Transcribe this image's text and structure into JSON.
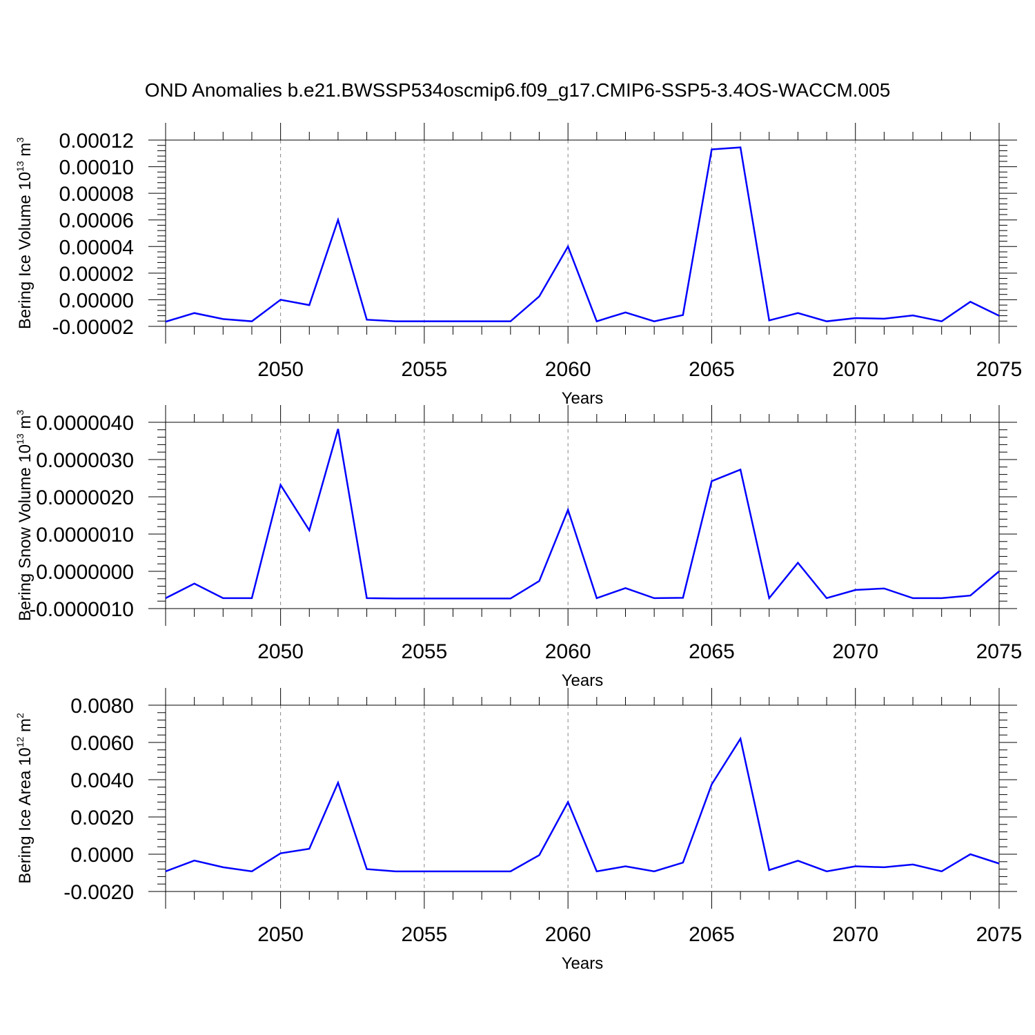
{
  "title": "OND Anomalies b.e21.BWSSP534oscmip6.f09_g17.CMIP6-SSP5-3.4OS-WACCM.005",
  "colors": {
    "line": "#0000ff",
    "axis": "#000000",
    "grid": "#888888"
  },
  "chart_data": [
    {
      "type": "line",
      "ylabel": "Bering Ice Volume 10",
      "ylabel_exp": "13",
      "ylabel_unit": " m",
      "ylabel_unit_exp": "3",
      "xlabel": "Years",
      "xlim": [
        2046,
        2075
      ],
      "ylim": [
        -2e-05,
        0.00012
      ],
      "xticks": [
        2050,
        2055,
        2060,
        2065,
        2070,
        2075
      ],
      "yticks": [
        -2e-05,
        0.0,
        2e-05,
        4e-05,
        6e-05,
        8e-05,
        0.0001,
        0.00012
      ],
      "ytick_labels": [
        "-0.00002",
        "0.00000",
        "0.00002",
        "0.00004",
        "0.00006",
        "0.00008",
        "0.00010",
        "0.00012"
      ],
      "grid": "vertical dashed at major x ticks",
      "x": [
        2046,
        2047,
        2048,
        2049,
        2050,
        2051,
        2052,
        2053,
        2054,
        2055,
        2056,
        2057,
        2058,
        2059,
        2060,
        2061,
        2062,
        2063,
        2064,
        2065,
        2066,
        2067,
        2068,
        2069,
        2070,
        2071,
        2072,
        2073,
        2074,
        2075
      ],
      "series": [
        {
          "values": [
            -1.65e-05,
            -1e-05,
            -1.45e-05,
            -1.62e-05,
            0.0,
            -4e-06,
            6e-05,
            -1.5e-05,
            -1.62e-05,
            -1.62e-05,
            -1.62e-05,
            -1.62e-05,
            -1.62e-05,
            2.5e-06,
            4e-05,
            -1.62e-05,
            -9.5e-06,
            -1.62e-05,
            -1.15e-05,
            0.000113,
            0.0001145,
            -1.55e-05,
            -1e-05,
            -1.62e-05,
            -1.38e-05,
            -1.42e-05,
            -1.18e-05,
            -1.62e-05,
            -1.5e-06,
            -1.2e-05
          ]
        }
      ]
    },
    {
      "type": "line",
      "ylabel": "Bering Snow Volume 10",
      "ylabel_exp": "13",
      "ylabel_unit": " m",
      "ylabel_unit_exp": "3",
      "xlabel": "Years",
      "xlim": [
        2046,
        2075
      ],
      "ylim": [
        -1e-06,
        4e-06
      ],
      "xticks": [
        2050,
        2055,
        2060,
        2065,
        2070,
        2075
      ],
      "yticks": [
        -1e-06,
        0.0,
        1e-06,
        2e-06,
        3e-06,
        4e-06
      ],
      "ytick_labels": [
        "-0.0000010",
        "0.0000000",
        "0.0000010",
        "0.0000020",
        "0.0000030",
        "0.0000040"
      ],
      "grid": "vertical dashed at major x ticks",
      "x": [
        2046,
        2047,
        2048,
        2049,
        2050,
        2051,
        2052,
        2053,
        2054,
        2055,
        2056,
        2057,
        2058,
        2059,
        2060,
        2061,
        2062,
        2063,
        2064,
        2065,
        2066,
        2067,
        2068,
        2069,
        2070,
        2071,
        2072,
        2073,
        2074,
        2075
      ],
      "series": [
        {
          "values": [
            -7.2e-07,
            -3.3e-07,
            -7.2e-07,
            -7.2e-07,
            2.32e-06,
            1.1e-06,
            3.82e-06,
            -7.2e-07,
            -7.3e-07,
            -7.3e-07,
            -7.3e-07,
            -7.3e-07,
            -7.3e-07,
            -2.6e-07,
            1.65e-06,
            -7.2e-07,
            -4.5e-07,
            -7.2e-07,
            -7.1e-07,
            2.42e-06,
            2.73e-06,
            -7.2e-07,
            2.3e-07,
            -7.2e-07,
            -5e-07,
            -4.6e-07,
            -7.2e-07,
            -7.2e-07,
            -6.5e-07,
            0.0
          ]
        }
      ]
    },
    {
      "type": "line",
      "ylabel": "Bering Ice Area 10",
      "ylabel_exp": "12",
      "ylabel_unit": " m",
      "ylabel_unit_exp": "2",
      "xlabel": "Years",
      "xlim": [
        2046,
        2075
      ],
      "ylim": [
        -0.002,
        0.008
      ],
      "xticks": [
        2050,
        2055,
        2060,
        2065,
        2070,
        2075
      ],
      "yticks": [
        -0.002,
        0.0,
        0.002,
        0.004,
        0.006,
        0.008
      ],
      "ytick_labels": [
        "-0.0020",
        "0.0000",
        "0.0020",
        "0.0040",
        "0.0060",
        "0.0080"
      ],
      "grid": "vertical dashed at major x ticks",
      "x": [
        2046,
        2047,
        2048,
        2049,
        2050,
        2051,
        2052,
        2053,
        2054,
        2055,
        2056,
        2057,
        2058,
        2059,
        2060,
        2061,
        2062,
        2063,
        2064,
        2065,
        2066,
        2067,
        2068,
        2069,
        2070,
        2071,
        2072,
        2073,
        2074,
        2075
      ],
      "series": [
        {
          "values": [
            -0.00092,
            -0.00034,
            -0.0007,
            -0.00092,
            5e-05,
            0.00029,
            0.00384,
            -0.0008,
            -0.00092,
            -0.00092,
            -0.00092,
            -0.00092,
            -0.00092,
            -5e-05,
            0.0028,
            -0.00092,
            -0.00065,
            -0.00092,
            -0.00045,
            0.00375,
            0.0062,
            -0.00085,
            -0.00035,
            -0.00092,
            -0.00065,
            -0.0007,
            -0.00055,
            -0.00092,
            0.0,
            -0.0005
          ]
        }
      ]
    }
  ]
}
